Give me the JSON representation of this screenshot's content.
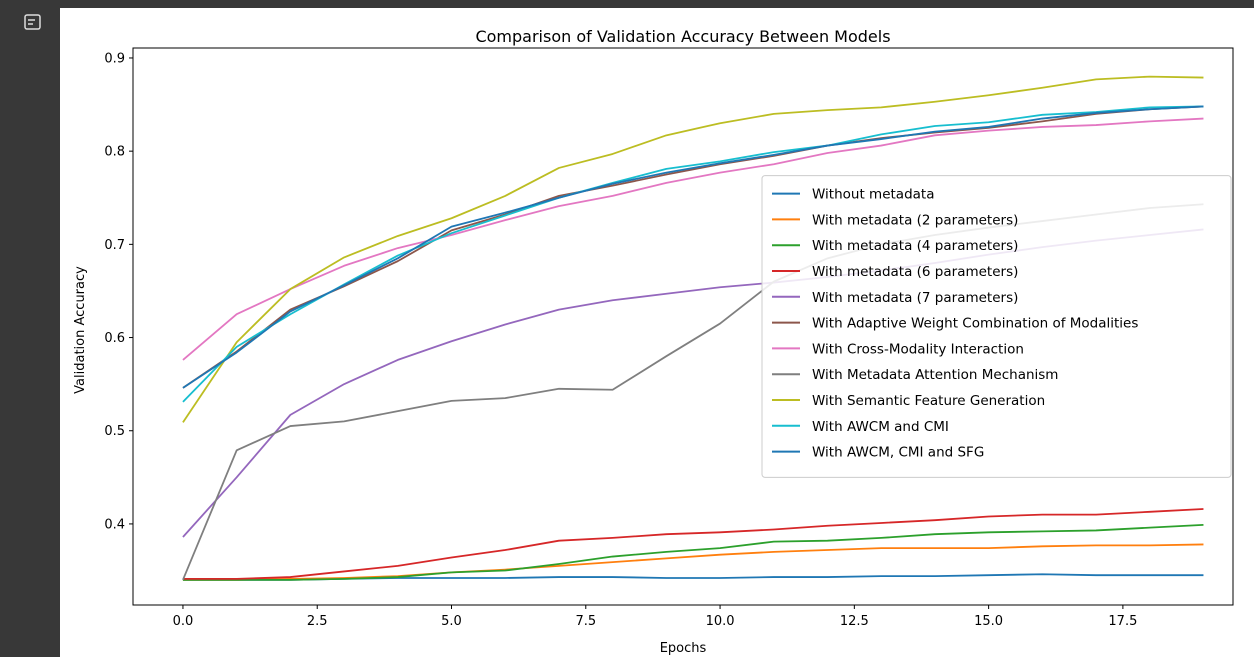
{
  "chart_data": {
    "type": "line",
    "title": "Comparison of Validation Accuracy Between Models",
    "xlabel": "Epochs",
    "ylabel": "Validation Accuracy",
    "x": [
      0,
      1,
      2,
      3,
      4,
      5,
      6,
      7,
      8,
      9,
      10,
      11,
      12,
      13,
      14,
      15,
      16,
      17,
      18,
      19
    ],
    "xlim": [
      -0.93,
      19.55
    ],
    "ylim": [
      0.313,
      0.9107
    ],
    "xticks": [
      {
        "value": 0,
        "label": "0.0"
      },
      2.5,
      {
        "value": 5,
        "label": "5.0"
      },
      7.5,
      {
        "value": 10,
        "label": "10.0"
      },
      12.5,
      {
        "value": 15,
        "label": "15.0"
      },
      17.5
    ],
    "yticks": [
      0.4,
      0.5,
      0.6,
      0.7,
      0.8,
      0.9
    ],
    "legend": "center right",
    "series": [
      {
        "name": "Without metadata",
        "color": "#1f77b4",
        "values": [
          0.34,
          0.34,
          0.34,
          0.341,
          0.342,
          0.342,
          0.342,
          0.343,
          0.343,
          0.342,
          0.342,
          0.343,
          0.343,
          0.344,
          0.344,
          0.345,
          0.346,
          0.345,
          0.345,
          0.345
        ]
      },
      {
        "name": "With metadata (2 parameters)",
        "color": "#ff7f0e",
        "values": [
          0.34,
          0.34,
          0.341,
          0.342,
          0.344,
          0.348,
          0.351,
          0.355,
          0.359,
          0.363,
          0.367,
          0.37,
          0.372,
          0.374,
          0.374,
          0.374,
          0.376,
          0.377,
          0.377,
          0.378
        ]
      },
      {
        "name": "With metadata (4 parameters)",
        "color": "#2ca02c",
        "values": [
          0.34,
          0.34,
          0.34,
          0.341,
          0.343,
          0.348,
          0.35,
          0.357,
          0.365,
          0.37,
          0.374,
          0.381,
          0.382,
          0.385,
          0.389,
          0.391,
          0.392,
          0.393,
          0.396,
          0.399
        ]
      },
      {
        "name": "With metadata (6 parameters)",
        "color": "#d62728",
        "values": [
          0.341,
          0.341,
          0.343,
          0.349,
          0.355,
          0.364,
          0.372,
          0.382,
          0.385,
          0.389,
          0.391,
          0.394,
          0.398,
          0.401,
          0.404,
          0.408,
          0.41,
          0.41,
          0.413,
          0.416
        ]
      },
      {
        "name": "With metadata (7 parameters)",
        "color": "#9467bd",
        "values": [
          0.386,
          0.45,
          0.517,
          0.55,
          0.576,
          0.596,
          0.614,
          0.63,
          0.64,
          0.647,
          0.654,
          0.659,
          0.665,
          0.672,
          0.68,
          0.689,
          0.697,
          0.704,
          0.71,
          0.716
        ]
      },
      {
        "name": "With Adaptive Weight Combination of Modalities",
        "color": "#8c564b",
        "values": [
          0.546,
          0.585,
          0.63,
          0.655,
          0.682,
          0.715,
          0.732,
          0.752,
          0.763,
          0.775,
          0.786,
          0.795,
          0.806,
          0.814,
          0.82,
          0.825,
          0.832,
          0.84,
          0.845,
          0.848
        ]
      },
      {
        "name": "With Cross-Modality Interaction",
        "color": "#e377c2",
        "values": [
          0.576,
          0.625,
          0.652,
          0.677,
          0.696,
          0.71,
          0.726,
          0.741,
          0.752,
          0.766,
          0.777,
          0.786,
          0.798,
          0.806,
          0.817,
          0.822,
          0.826,
          0.828,
          0.832,
          0.835
        ]
      },
      {
        "name": "With Metadata Attention Mechanism",
        "color": "#7f7f7f",
        "values": [
          0.34,
          0.479,
          0.505,
          0.51,
          0.521,
          0.532,
          0.535,
          0.545,
          0.544,
          0.58,
          0.615,
          0.66,
          0.685,
          0.7,
          0.71,
          0.718,
          0.725,
          0.732,
          0.739,
          0.743
        ]
      },
      {
        "name": "With Semantic Feature Generation",
        "color": "#bcbd22",
        "values": [
          0.509,
          0.595,
          0.652,
          0.686,
          0.709,
          0.728,
          0.752,
          0.782,
          0.797,
          0.817,
          0.83,
          0.84,
          0.844,
          0.847,
          0.853,
          0.86,
          0.868,
          0.877,
          0.88,
          0.879
        ]
      },
      {
        "name": "With AWCM and CMI",
        "color": "#17becf",
        "values": [
          0.531,
          0.59,
          0.625,
          0.657,
          0.688,
          0.712,
          0.731,
          0.75,
          0.766,
          0.781,
          0.789,
          0.799,
          0.806,
          0.818,
          0.827,
          0.831,
          0.839,
          0.842,
          0.847,
          0.848
        ]
      },
      {
        "name": "With AWCM, CMI and SFG",
        "color": "#1f77b4",
        "values": [
          0.546,
          0.584,
          0.628,
          0.656,
          0.685,
          0.719,
          0.734,
          0.75,
          0.765,
          0.777,
          0.787,
          0.796,
          0.806,
          0.813,
          0.821,
          0.826,
          0.835,
          0.841,
          0.845,
          0.848
        ]
      }
    ]
  }
}
